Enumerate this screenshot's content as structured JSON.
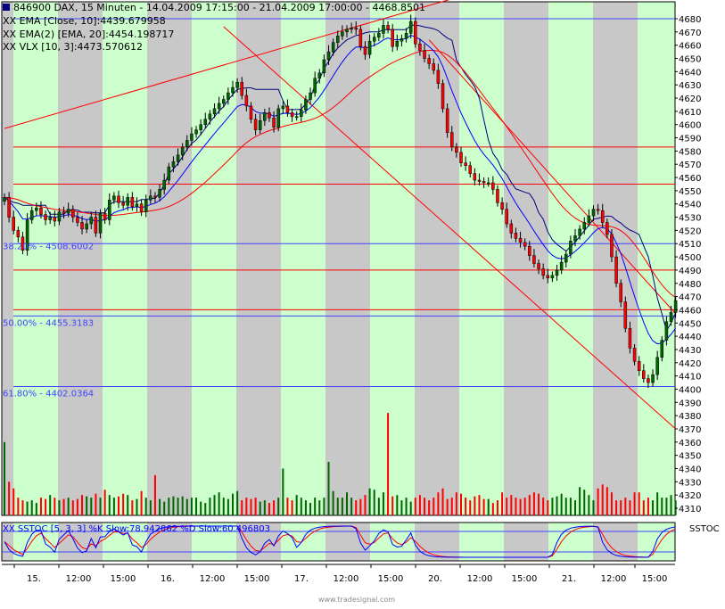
{
  "header": {
    "title": "846900  DAX, 15 Minuten - 14.04.2009 17:15:00 - 21.04.2009 17:00:00 - 4468.8501",
    "indicators": [
      {
        "label": "XX EMA [Close, 10]:4439.679958",
        "color": "#0000ff"
      },
      {
        "label": "XX EMA(2) [EMA, 20]:4454.198717",
        "color": "#ff0000"
      },
      {
        "label": "XX VLX [10, 3]:4473.570612",
        "color": "#000080"
      }
    ]
  },
  "fib_labels": [
    {
      "label": "38.20% - 4508.6002",
      "price": 4508.6002
    },
    {
      "label": "50.00% - 4455.3183",
      "price": 4455.3183
    },
    {
      "label": "61.80% - 4402.0364",
      "price": 4402.0364
    }
  ],
  "stoch": {
    "label": "XX SSTOC [5, 3, 3] %K Slow:78.942862 %D Slow:60.496803",
    "axis_label": "SSTOC",
    "k_color": "#0000ff",
    "d_color": "#ff0000"
  },
  "watermark": "www.tradesignal.com",
  "colors": {
    "bull": "#006600",
    "bear": "#ff0000",
    "band_light": "#ccffcc",
    "band_grey": "#c8c8c8",
    "ema10": "#0000ff",
    "ema20": "#ff0000",
    "vlx": "#000080",
    "trend": "#ff0000",
    "blue_hline": "#4444ff"
  },
  "chart_data": {
    "type": "candlestick",
    "title": "846900  DAX, 15 Minuten",
    "ylim": [
      4305,
      4690
    ],
    "y_ticks": [
      "4680",
      "4670",
      "4660",
      "4650",
      "4640",
      "4630",
      "4620",
      "4610",
      "4600",
      "4590",
      "4580",
      "4570",
      "4560",
      "4550",
      "4540",
      "4530",
      "4520",
      "4510",
      "4500",
      "4490",
      "4480",
      "4470",
      "4460",
      "4450",
      "4440",
      "4430",
      "4420",
      "4410",
      "4400",
      "4390",
      "4380",
      "4370",
      "4360",
      "4350",
      "4340",
      "4330",
      "4320",
      "4310"
    ],
    "x_ticks": [
      "15.",
      "12:00",
      "15:00",
      "16.",
      "12:00",
      "15:00",
      "17.",
      "12:00",
      "15:00",
      "20.",
      "12:00",
      "15:00",
      "21.",
      "12:00",
      "15:00"
    ],
    "horizontal_lines": [
      {
        "price": 4680,
        "color": "blue"
      },
      {
        "price": 4583,
        "color": "red"
      },
      {
        "price": 4555,
        "color": "red"
      },
      {
        "price": 4510,
        "color": "blue"
      },
      {
        "price": 4490,
        "color": "red"
      },
      {
        "price": 4460,
        "color": "red"
      },
      {
        "price": 4455.3183,
        "color": "blue"
      },
      {
        "price": 4402.0364,
        "color": "blue"
      }
    ],
    "trendlines": [
      {
        "from": [
          0,
          4597
        ],
        "to": [
          101,
          4698
        ]
      },
      {
        "from": [
          48,
          4674
        ],
        "to": [
          147,
          4370
        ]
      },
      {
        "from": [
          93,
          4664
        ],
        "to": [
          147,
          4457
        ]
      }
    ],
    "closes": [
      4545,
      4530,
      4520,
      4515,
      4505,
      4528,
      4535,
      4537,
      4532,
      4528,
      4530,
      4527,
      4534,
      4533,
      4536,
      4530,
      4526,
      4521,
      4525,
      4530,
      4518,
      4533,
      4528,
      4543,
      4546,
      4541,
      4539,
      4545,
      4538,
      4540,
      4534,
      4543,
      4546,
      4545,
      4551,
      4558,
      4568,
      4572,
      4577,
      4583,
      4588,
      4593,
      4596,
      4600,
      4604,
      4608,
      4612,
      4616,
      4619,
      4624,
      4628,
      4632,
      4622,
      4614,
      4604,
      4596,
      4603,
      4609,
      4605,
      4598,
      4612,
      4614,
      4609,
      4606,
      4606,
      4611,
      4619,
      4624,
      4635,
      4639,
      4649,
      4655,
      4662,
      4667,
      4670,
      4672,
      4673,
      4672,
      4659,
      4653,
      4663,
      4666,
      4669,
      4675,
      4672,
      4659,
      4663,
      4665,
      4669,
      4678,
      4661,
      4656,
      4650,
      4646,
      4641,
      4631,
      4612,
      4594,
      4583,
      4579,
      4571,
      4569,
      4563,
      4558,
      4557,
      4556,
      4556,
      4551,
      4541,
      4536,
      4525,
      4518,
      4514,
      4511,
      4508,
      4501,
      4495,
      4491,
      4486,
      4484,
      4486,
      4490,
      4496,
      4502,
      4512,
      4516,
      4521,
      4526,
      4531,
      4536,
      4535,
      4526,
      4517,
      4500,
      4480,
      4466,
      4446,
      4431,
      4421,
      4414,
      4408,
      4405,
      4411,
      4424,
      4437,
      4451,
      4458,
      4467
    ],
    "volume_max": 4380,
    "volume": [
      4360,
      4330,
      4325,
      4318,
      4316,
      4315,
      4316,
      4314,
      4318,
      4317,
      4320,
      4318,
      4316,
      4317,
      4318,
      4316,
      4317,
      4320,
      4319,
      4318,
      4321,
      4318,
      4324,
      4320,
      4318,
      4319,
      4321,
      4320,
      4316,
      4317,
      4323,
      4318,
      4316,
      4335,
      4317,
      4315,
      4318,
      4319,
      4318,
      4319,
      4317,
      4318,
      4318,
      4315,
      4314,
      4318,
      4320,
      4322,
      4318,
      4317,
      4321,
      4323,
      4316,
      4318,
      4317,
      4318,
      4315,
      4316,
      4314,
      4316,
      4318,
      4340,
      4318,
      4316,
      4320,
      4318,
      4316,
      4314,
      4318,
      4316,
      4318,
      4345,
      4323,
      4318,
      4318,
      4322,
      4318,
      4316,
      4317,
      4320,
      4325,
      4324,
      4318,
      4322,
      4382,
      4319,
      4320,
      4316,
      4318,
      4315,
      4318,
      4320,
      4318,
      4316,
      4318,
      4322,
      4325,
      4317,
      4318,
      4322,
      4321,
      4318,
      4316,
      4319,
      4320,
      4317,
      4317,
      4314,
      4316,
      4322,
      4318,
      4320,
      4318,
      4317,
      4318,
      4320,
      4322,
      4321,
      4318,
      4316,
      4318,
      4319,
      4321,
      4318,
      4318,
      4316,
      4326,
      4324,
      4320,
      4316,
      4325,
      4328,
      4326,
      4322,
      4316,
      4316,
      4318,
      4316,
      4322,
      4322,
      4316,
      4318,
      4316,
      4322,
      4318,
      4318,
      4320,
      4316
    ]
  }
}
